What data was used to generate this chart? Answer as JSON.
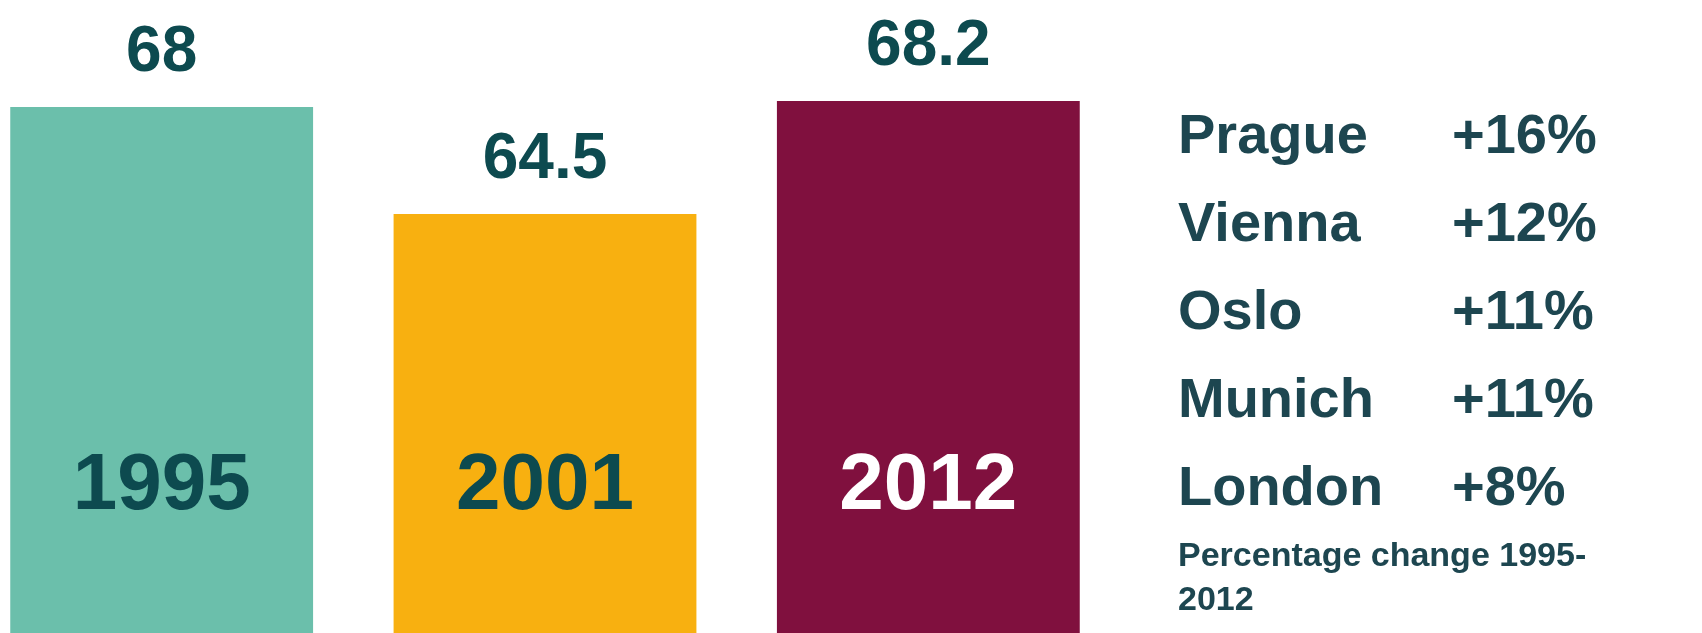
{
  "chart_data": [
    {
      "type": "bar",
      "categories": [
        "1995",
        "2001",
        "2012"
      ],
      "values": [
        68,
        64.5,
        68.2
      ],
      "colors": [
        "#6bbfab",
        "#f8b010",
        "#80103e"
      ],
      "ylim": [
        50.8,
        71.5
      ],
      "tick_labels": false,
      "legend": false,
      "data_labels": true
    },
    {
      "type": "other",
      "categories": [
        "Prague",
        "Vienna",
        "Oslo",
        "Munich",
        "London"
      ],
      "value_labels": [
        "+16%",
        "+12%",
        "+11%",
        "+11%",
        "+8%"
      ],
      "annotations": [
        "Percentage change 1995-2012"
      ]
    }
  ]
}
